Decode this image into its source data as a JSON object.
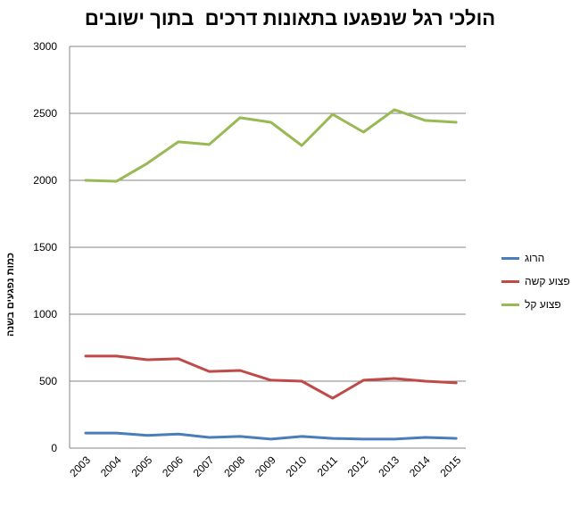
{
  "chart_data": {
    "type": "line",
    "title": "הולכי רגל שנפגעו בתאונות דרכים  בתוך ישובים",
    "ylabel": "כמות נפגעים בשנה",
    "xlabel": "",
    "ylim": [
      0,
      3000
    ],
    "yticks": [
      0,
      500,
      1000,
      1500,
      2000,
      2500,
      3000
    ],
    "grid": true,
    "legend": "right",
    "x": [
      "2003",
      "2004",
      "2005",
      "2006",
      "2007",
      "2008",
      "2009",
      "2010",
      "2011",
      "2012",
      "2013",
      "2014",
      "2015"
    ],
    "series": [
      {
        "name": "הרוג",
        "color": "#4a7ebb",
        "values": [
          113,
          113,
          95,
          105,
          80,
          87,
          67,
          87,
          73,
          67,
          67,
          80,
          73
        ]
      },
      {
        "name": "פצוע קשה",
        "color": "#be4b48",
        "values": [
          687,
          687,
          660,
          667,
          573,
          580,
          507,
          500,
          373,
          507,
          520,
          500,
          487
        ]
      },
      {
        "name": "פצוע קל",
        "color": "#98b954",
        "values": [
          2000,
          1993,
          2127,
          2287,
          2267,
          2467,
          2433,
          2260,
          2493,
          2360,
          2527,
          2447,
          2433
        ]
      }
    ]
  }
}
